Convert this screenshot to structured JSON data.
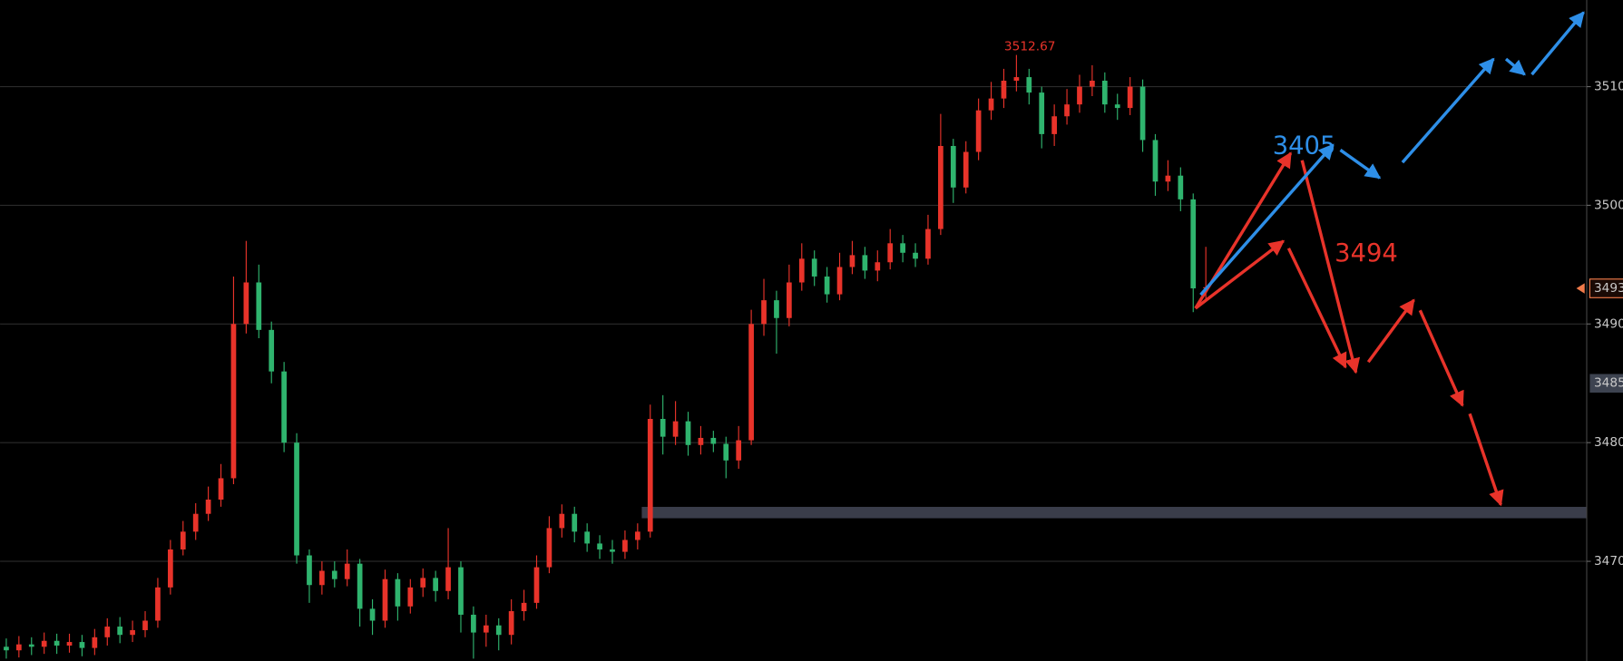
{
  "chart_data": {
    "type": "candlestick",
    "up_color": "#e8332a",
    "down_color": "#2fb46e",
    "grid": true,
    "ylim": [
      3461.6,
      3517.3
    ],
    "yticks": [
      3470,
      3480,
      3490,
      3500,
      3510
    ],
    "high_label": 3512.67,
    "last_price": {
      "value": 3493,
      "color": "#f07a4a"
    },
    "cursor_price": {
      "value": 3485,
      "color": "#3d4350"
    },
    "annotations": [
      {
        "text": "3405",
        "color": "#2e8fe8"
      },
      {
        "text": "3494",
        "color": "#e8332a"
      }
    ],
    "candles": {
      "open": [
        3462.8,
        3462.5,
        3463.0,
        3462.8,
        3463.3,
        3462.9,
        3463.2,
        3462.7,
        3463.6,
        3464.5,
        3463.8,
        3464.2,
        3465.0,
        3467.8,
        3471.0,
        3472.5,
        3474.0,
        3475.2,
        3477.0,
        3490.0,
        3493.5,
        3489.5,
        3486.0,
        3480.0,
        3470.5,
        3468.0,
        3469.2,
        3468.5,
        3469.8,
        3466.0,
        3465.0,
        3468.5,
        3466.2,
        3467.8,
        3468.6,
        3467.5,
        3469.5,
        3465.5,
        3464.0,
        3464.6,
        3463.8,
        3465.8,
        3466.5,
        3469.5,
        3472.8,
        3474.0,
        3472.5,
        3471.5,
        3471.0,
        3470.8,
        3471.8,
        3472.5,
        3482.0,
        3480.5,
        3481.8,
        3479.8,
        3480.4,
        3479.9,
        3478.5,
        3480.2,
        3490.0,
        3492.0,
        3490.5,
        3493.5,
        3495.5,
        3494.0,
        3492.5,
        3494.8,
        3495.8,
        3494.5,
        3495.2,
        3496.8,
        3496.0,
        3495.5,
        3498.0,
        3505.0,
        3501.5,
        3504.5,
        3508.0,
        3509.0,
        3510.5,
        3510.8,
        3509.5,
        3506.0,
        3507.5,
        3508.5,
        3510.0,
        3510.5,
        3508.5,
        3508.2,
        3510.0,
        3505.5,
        3502.0,
        3502.5,
        3500.5,
        3493.0
      ],
      "high": [
        3463.5,
        3463.7,
        3463.6,
        3464.0,
        3463.9,
        3463.9,
        3463.8,
        3464.3,
        3465.2,
        3465.3,
        3465.0,
        3465.8,
        3468.6,
        3471.8,
        3473.4,
        3474.9,
        3476.3,
        3478.2,
        3494.0,
        3497.0,
        3495.0,
        3490.2,
        3486.8,
        3480.8,
        3471.0,
        3470.0,
        3470.0,
        3471.0,
        3470.2,
        3466.8,
        3469.3,
        3469.0,
        3468.5,
        3469.4,
        3469.2,
        3472.8,
        3470.0,
        3466.2,
        3465.5,
        3465.2,
        3466.8,
        3467.6,
        3470.5,
        3473.8,
        3474.8,
        3474.6,
        3473.2,
        3472.2,
        3471.8,
        3472.6,
        3473.2,
        3483.2,
        3484.0,
        3483.5,
        3482.6,
        3481.4,
        3481.0,
        3480.5,
        3481.4,
        3491.2,
        3493.8,
        3492.8,
        3495.0,
        3496.8,
        3496.2,
        3494.8,
        3496.0,
        3497.0,
        3496.5,
        3496.2,
        3498.0,
        3497.5,
        3496.8,
        3499.2,
        3507.7,
        3505.6,
        3505.4,
        3509.0,
        3510.4,
        3511.5,
        3512.67,
        3511.5,
        3510.0,
        3508.5,
        3509.8,
        3511.0,
        3511.8,
        3511.2,
        3509.4,
        3510.8,
        3510.6,
        3506.0,
        3503.8,
        3503.2,
        3501.0,
        3496.5
      ],
      "low": [
        3461.8,
        3461.9,
        3462.1,
        3462.2,
        3462.2,
        3462.3,
        3462.0,
        3462.1,
        3462.9,
        3463.1,
        3463.2,
        3463.6,
        3464.4,
        3467.2,
        3470.5,
        3471.8,
        3473.4,
        3474.6,
        3476.5,
        3489.2,
        3488.8,
        3485.0,
        3479.2,
        3469.8,
        3466.5,
        3467.2,
        3467.8,
        3467.9,
        3464.5,
        3463.8,
        3464.4,
        3465.0,
        3465.6,
        3467.0,
        3466.6,
        3466.8,
        3464.0,
        3461.8,
        3462.8,
        3462.5,
        3463.0,
        3465.0,
        3466.0,
        3469.0,
        3472.0,
        3471.6,
        3470.8,
        3470.2,
        3469.8,
        3470.2,
        3471.0,
        3472.0,
        3479.0,
        3479.8,
        3478.9,
        3479.0,
        3479.2,
        3477.0,
        3477.8,
        3479.8,
        3489.0,
        3487.5,
        3489.8,
        3492.8,
        3493.2,
        3491.8,
        3492.0,
        3494.2,
        3493.8,
        3493.6,
        3494.6,
        3495.2,
        3494.8,
        3495.0,
        3497.5,
        3500.2,
        3501.0,
        3503.8,
        3507.2,
        3508.2,
        3509.6,
        3508.5,
        3504.8,
        3505.0,
        3506.8,
        3507.8,
        3509.2,
        3507.8,
        3507.2,
        3507.6,
        3504.5,
        3500.8,
        3501.2,
        3499.5,
        3491.0,
        3492.0
      ],
      "close": [
        3462.5,
        3463.0,
        3462.8,
        3463.3,
        3462.9,
        3463.2,
        3462.7,
        3463.6,
        3464.5,
        3463.8,
        3464.2,
        3465.0,
        3467.8,
        3471.0,
        3472.5,
        3474.0,
        3475.2,
        3477.0,
        3490.0,
        3493.5,
        3489.5,
        3486.0,
        3480.0,
        3470.5,
        3468.0,
        3469.2,
        3468.5,
        3469.8,
        3466.0,
        3465.0,
        3468.5,
        3466.2,
        3467.8,
        3468.6,
        3467.5,
        3469.5,
        3465.5,
        3464.0,
        3464.6,
        3463.8,
        3465.8,
        3466.5,
        3469.5,
        3472.8,
        3474.0,
        3472.5,
        3471.5,
        3471.0,
        3470.8,
        3471.8,
        3472.5,
        3482.0,
        3480.5,
        3481.8,
        3479.8,
        3480.4,
        3479.9,
        3478.5,
        3480.2,
        3490.0,
        3492.0,
        3490.5,
        3493.5,
        3495.5,
        3494.0,
        3492.5,
        3494.8,
        3495.8,
        3494.5,
        3495.2,
        3496.8,
        3496.0,
        3495.5,
        3498.0,
        3505.0,
        3501.5,
        3504.5,
        3508.0,
        3509.0,
        3510.5,
        3510.8,
        3509.5,
        3506.0,
        3507.5,
        3508.5,
        3510.0,
        3510.5,
        3508.5,
        3508.2,
        3510.0,
        3505.5,
        3502.0,
        3502.5,
        3500.5,
        3493.0,
        3493.1
      ]
    }
  }
}
